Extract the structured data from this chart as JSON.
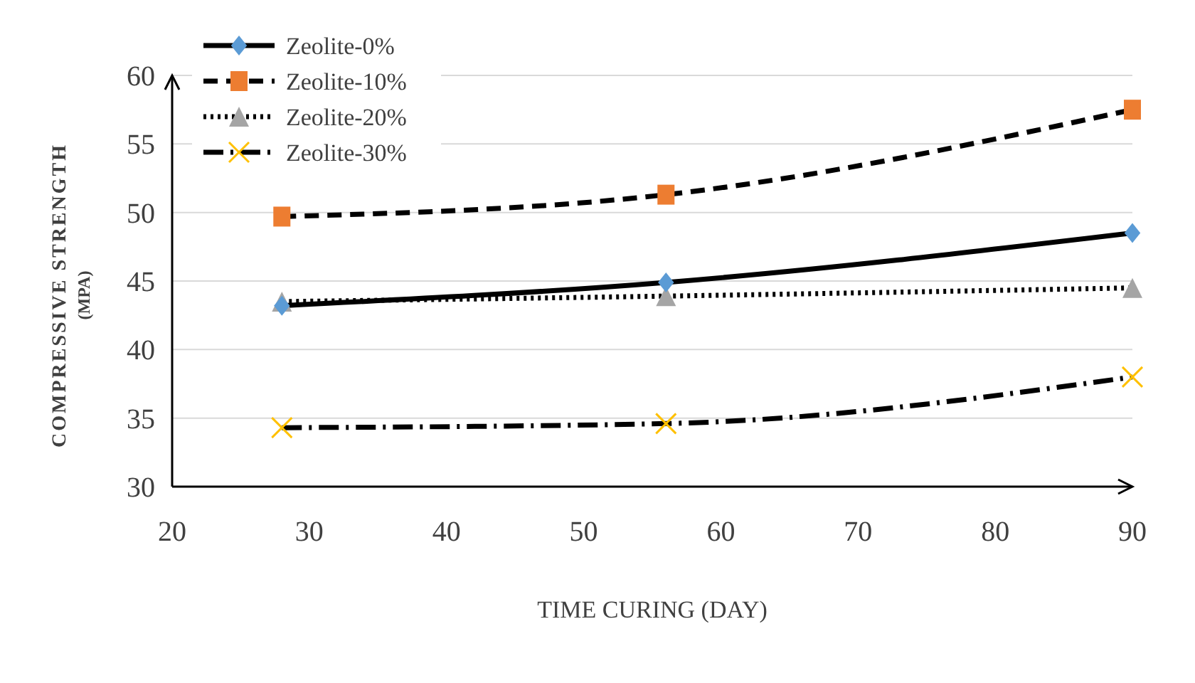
{
  "chart_data": {
    "type": "line",
    "xlabel": "TIME CURING (DAY)",
    "ylabel": "COMPRESSIVE STRENGTH\n(MPA)",
    "x": [
      28,
      56,
      90
    ],
    "series": [
      {
        "name": "Zeolite-0%",
        "color": "#5b9bd5",
        "values": [
          43.2,
          44.9,
          48.5
        ],
        "marker": "diamond",
        "line_style": "solid"
      },
      {
        "name": "Zeolite-10%",
        "color": "#ed7d31",
        "values": [
          49.7,
          51.3,
          57.5
        ],
        "marker": "square",
        "line_style": "dashed"
      },
      {
        "name": "Zeolite-20%",
        "color": "#a5a5a5",
        "values": [
          43.5,
          43.9,
          44.5
        ],
        "marker": "triangle",
        "line_style": "dotted"
      },
      {
        "name": "Zeolite-30%",
        "color": "#ffc000",
        "values": [
          34.3,
          34.6,
          38
        ],
        "marker": "cross",
        "line_style": "dashdot"
      }
    ],
    "xlim": [
      20,
      90
    ],
    "xticks": [
      20,
      30,
      40,
      50,
      60,
      70,
      80,
      90
    ],
    "ylim": [
      30,
      60
    ],
    "yticks": [
      30,
      35,
      40,
      45,
      50,
      55,
      60
    ],
    "grid": "y",
    "legend": "top left"
  }
}
